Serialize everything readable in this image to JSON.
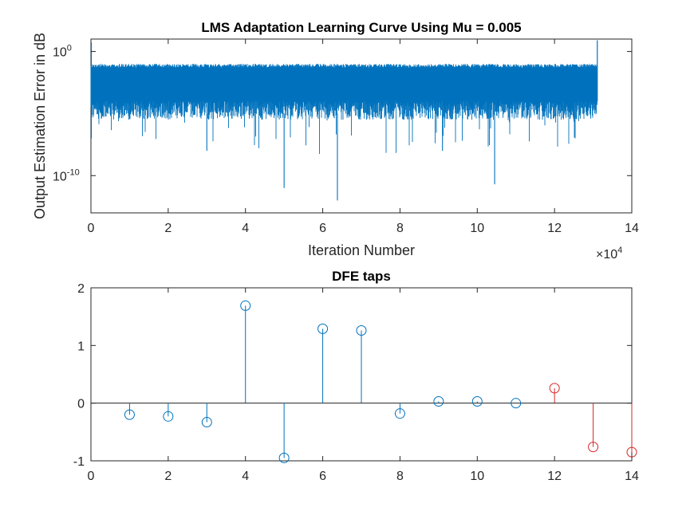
{
  "colors": {
    "blue": "#0072BD",
    "red": "#D62728",
    "axis": "#262626"
  },
  "chart_data": [
    {
      "type": "line",
      "title": "LMS Adaptation Learning Curve Using Mu = 0.005",
      "xlabel": "Iteration Number",
      "ylabel": "Output Estimation Error in dB",
      "xlim": [
        0,
        140000
      ],
      "x_ticks": [
        0,
        20000,
        40000,
        60000,
        80000,
        100000,
        120000,
        140000
      ],
      "x_tick_labels": [
        "0",
        "2",
        "4",
        "6",
        "8",
        "10",
        "12",
        "14"
      ],
      "x_exponent_label": "×10",
      "x_exponent_power": "4",
      "ylog": true,
      "ylim": [
        1e-13,
        10
      ],
      "y_tick_labels": [
        "10",
        "10"
      ],
      "y_tick_powers": [
        "0",
        "-10"
      ],
      "y_tick_values": [
        1,
        1e-10
      ],
      "grid": false,
      "series": [
        {
          "color": "#0072BD",
          "x_range": [
            1,
            131072
          ],
          "band_top": 0.1,
          "band_bottom": 0.0001,
          "min_dips": [
            {
              "x": 50000,
              "y": 1e-11
            },
            {
              "x": 63800,
              "y": 1e-12
            },
            {
              "x": 104500,
              "y": 2e-11
            },
            {
              "x": 30000,
              "y": 1e-08
            },
            {
              "x": 91000,
              "y": 1e-08
            }
          ]
        }
      ]
    },
    {
      "type": "stem",
      "title": "DFE taps",
      "xlim": [
        0,
        14
      ],
      "ylim": [
        -1,
        2
      ],
      "x_ticks": [
        0,
        2,
        4,
        6,
        8,
        10,
        12,
        14
      ],
      "y_ticks": [
        -1,
        0,
        1,
        2
      ],
      "x_tick_labels": [
        "0",
        "2",
        "4",
        "6",
        "8",
        "10",
        "12",
        "14"
      ],
      "y_tick_labels": [
        "-1",
        "0",
        "1",
        "2"
      ],
      "grid": false,
      "series": [
        {
          "color": "#0072BD",
          "x": [
            1,
            2,
            3,
            4,
            5,
            6,
            7,
            8,
            9,
            10,
            11
          ],
          "values": [
            -0.2,
            -0.23,
            -0.33,
            1.69,
            -0.95,
            1.29,
            1.26,
            -0.18,
            0.03,
            0.03,
            0.0
          ]
        },
        {
          "color": "#D62728",
          "x": [
            12,
            13,
            14
          ],
          "values": [
            0.26,
            -0.76,
            -0.85
          ]
        }
      ]
    }
  ]
}
